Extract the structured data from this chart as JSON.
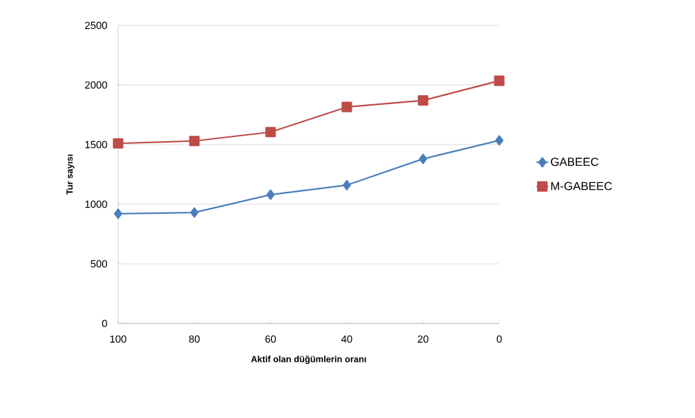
{
  "chart_data": {
    "type": "line",
    "xlabel": "Aktif olan düğümlerin oranı",
    "ylabel": "Tur sayısı",
    "categories": [
      "100",
      "80",
      "60",
      "40",
      "20",
      "0"
    ],
    "series": [
      {
        "name": "GABEEC",
        "color": "#4a7ebb",
        "marker": "diamond",
        "values": [
          920,
          930,
          1080,
          1160,
          1380,
          1535
        ]
      },
      {
        "name": "M-GABEEC",
        "color": "#be4b48",
        "marker": "square",
        "values": [
          1510,
          1530,
          1605,
          1815,
          1870,
          2035
        ]
      }
    ],
    "ylim": [
      0,
      2500
    ],
    "yticks": [
      0,
      500,
      1000,
      1500,
      2000,
      2500
    ],
    "grid": "y",
    "legend": "right",
    "line_style": "solid"
  }
}
